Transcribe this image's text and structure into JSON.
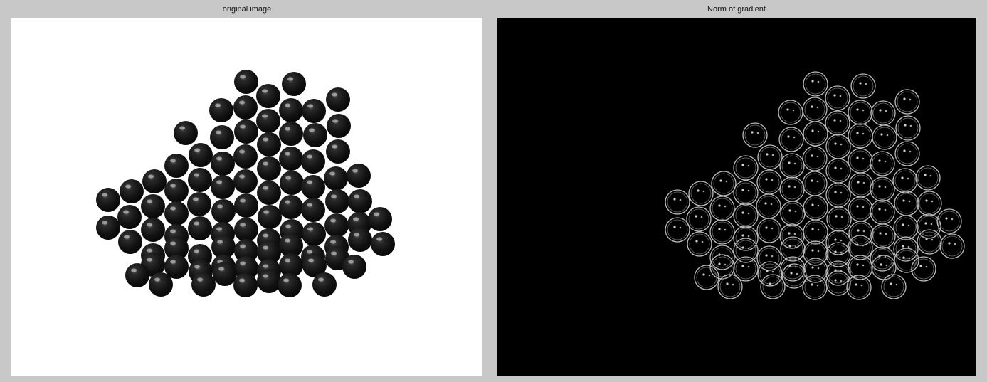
{
  "figure": {
    "left_title": "original image",
    "right_title": "Norm of gradient"
  },
  "colors": {
    "figure_background": "#c8c8c8",
    "original_background": "#ffffff",
    "gradient_background": "#000000",
    "ball_fill": "#151515",
    "edge_stroke": "#bdbdbd"
  }
}
